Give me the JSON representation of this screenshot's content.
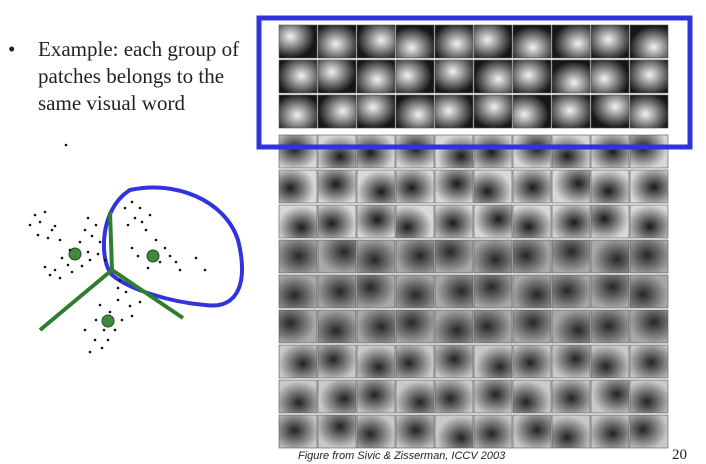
{
  "slide": {
    "bullet_marker": "•",
    "bullet_text": "Example: each group of patches belongs to the same visual word",
    "citation": "Figure from Sivic & Zisserman, ICCV 2003",
    "page_number": "20"
  },
  "figure": {
    "patch_groups": [
      {
        "tone": "dark",
        "rows": 3,
        "cols": 10,
        "highlighted": true
      },
      {
        "tone": "window",
        "rows": 3,
        "cols": 10,
        "highlighted": false
      },
      {
        "tone": "corner",
        "rows": 3,
        "cols": 10,
        "highlighted": false
      },
      {
        "tone": "blob",
        "rows": 3,
        "cols": 10,
        "highlighted": false
      }
    ],
    "highlight_color": "#3333dd",
    "cluster_boundary_color": "#2f7d2f",
    "cluster_center_color": "#3f8a3f",
    "cluster_outline_color": "#3333dd"
  }
}
